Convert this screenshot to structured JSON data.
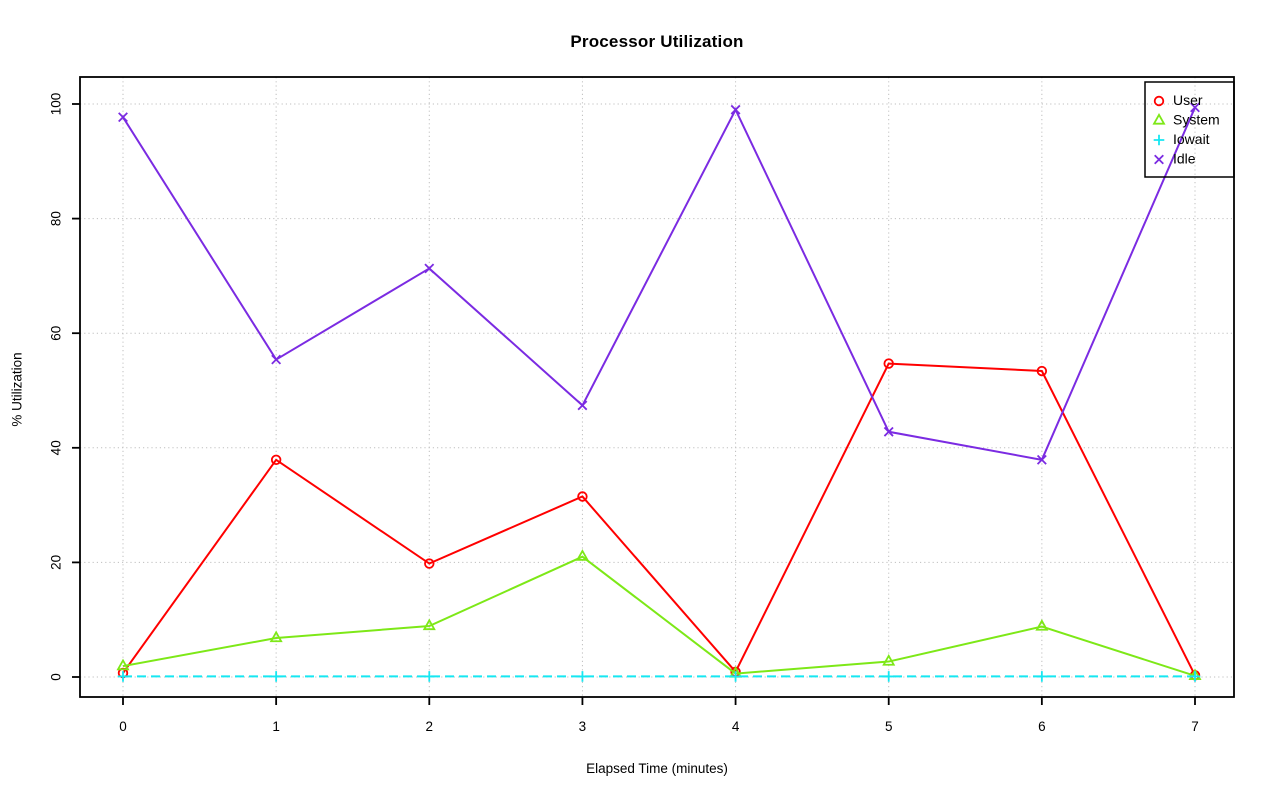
{
  "page": {
    "background": "#FFFFFF",
    "text_color": "#000000",
    "grid_color": "#BFBFBF",
    "axis_color": "#000000"
  },
  "chart_data": {
    "type": "line",
    "title": "Processor Utilization",
    "xlabel": "Elapsed Time (minutes)",
    "ylabel": "% Utilization",
    "x": [
      0,
      1,
      2,
      3,
      4,
      5,
      6,
      7
    ],
    "xticks": [
      "0",
      "1",
      "2",
      "3",
      "4",
      "5",
      "6",
      "7"
    ],
    "yticks": [
      "0",
      "20",
      "40",
      "60",
      "80",
      "100"
    ],
    "ytick_values": [
      0,
      20,
      40,
      60,
      80,
      100
    ],
    "xlim": [
      0,
      7
    ],
    "ylim": [
      0,
      100
    ],
    "grid": "dotted",
    "legend_position": "topright",
    "legend_background": "transparent",
    "series": [
      {
        "name": "User",
        "color": "#FF0000",
        "marker": "circle",
        "linestyle": "solid",
        "values": [
          0.7,
          37.9,
          19.8,
          31.5,
          0.9,
          54.7,
          53.4,
          0.3
        ]
      },
      {
        "name": "System",
        "color": "#7DE817",
        "marker": "triangle",
        "linestyle": "solid",
        "values": [
          1.9,
          6.8,
          8.9,
          21.0,
          0.6,
          2.7,
          8.8,
          0.2
        ]
      },
      {
        "name": "Iowait",
        "color": "#16E7F2",
        "marker": "plus",
        "linestyle": "dashed",
        "values": [
          0.1,
          0.1,
          0.1,
          0.1,
          0.1,
          0.1,
          0.1,
          0.1
        ]
      },
      {
        "name": "Idle",
        "color": "#7B2BE2",
        "marker": "x",
        "linestyle": "solid",
        "values": [
          97.7,
          55.4,
          71.3,
          47.4,
          99.0,
          42.8,
          37.9,
          99.4
        ]
      }
    ]
  }
}
